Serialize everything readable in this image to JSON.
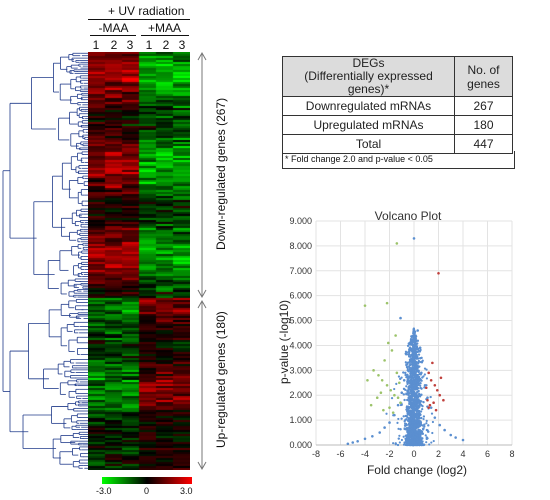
{
  "heatmap": {
    "condition_label": "+ UV radiation",
    "groups": [
      {
        "label": "-MAA",
        "columns": [
          "1",
          "2",
          "3"
        ]
      },
      {
        "label": "+MAA",
        "columns": [
          "1",
          "2",
          "3"
        ]
      }
    ],
    "clusters": [
      {
        "label": "Down-regulated genes (267)",
        "count": 267
      },
      {
        "label": "Up-regulated genes (180)",
        "count": 180
      }
    ],
    "colorbar": {
      "ticks": [
        "-3.0",
        "0",
        "3.0"
      ],
      "colors": {
        "low": "#00ff00",
        "mid": "#000000",
        "high": "#ff0000"
      }
    }
  },
  "deg_table": {
    "headers": [
      "DEGs\n(Differentially expressed genes)*",
      "No. of genes"
    ],
    "rows": [
      {
        "label": "Downregulated mRNAs",
        "value": "267"
      },
      {
        "label": "Upregulated mRNAs",
        "value": "180"
      },
      {
        "label": "Total",
        "value": "447"
      }
    ],
    "footnote": "* Fold change 2.0 and p-value < 0.05"
  },
  "chart_data": {
    "type": "scatter",
    "title": "Volcano Plot",
    "xlabel": "Fold change (log2)",
    "ylabel": "p-value (-log10)",
    "xlim": [
      -8,
      8
    ],
    "ylim": [
      0,
      9
    ],
    "xticks": [
      "-8",
      "-6",
      "-4",
      "-2",
      "0",
      "2",
      "4",
      "6",
      "8"
    ],
    "yticks": [
      "0.000",
      "1.000",
      "2.000",
      "3.000",
      "4.000",
      "5.000",
      "6.000",
      "7.000",
      "8.000",
      "9.000"
    ],
    "grid": true,
    "series": [
      {
        "color": "#5b8fd0",
        "points": [
          [
            0.3,
            4.6
          ],
          [
            0.1,
            4.2
          ],
          [
            0.5,
            3.9
          ],
          [
            -0.2,
            3.6
          ],
          [
            0.2,
            3.2
          ],
          [
            -0.5,
            3.0
          ],
          [
            0.6,
            2.9
          ],
          [
            -0.8,
            2.6
          ],
          [
            0.9,
            2.4
          ],
          [
            -1.0,
            2.1
          ],
          [
            1.1,
            1.9
          ],
          [
            -1.3,
            1.6
          ],
          [
            1.4,
            1.5
          ],
          [
            -1.6,
            1.2
          ],
          [
            1.7,
            1.1
          ],
          [
            -2.0,
            0.9
          ],
          [
            2.1,
            0.8
          ],
          [
            -2.4,
            0.7
          ],
          [
            2.5,
            0.6
          ],
          [
            -2.8,
            0.5
          ],
          [
            3.0,
            0.4
          ],
          [
            -3.4,
            0.35
          ],
          [
            3.4,
            0.3
          ],
          [
            -4.0,
            0.25
          ],
          [
            4.0,
            0.2
          ],
          [
            -4.6,
            0.15
          ],
          [
            -5.0,
            0.1
          ],
          [
            -5.4,
            0.05
          ],
          [
            0.0,
            8.3
          ],
          [
            -1.1,
            5.1
          ]
        ]
      },
      {
        "color": "#9cc36a",
        "points": [
          [
            -4.0,
            5.6
          ],
          [
            -3.3,
            3.0
          ],
          [
            -2.6,
            2.6
          ],
          [
            -2.2,
            2.4
          ],
          [
            -1.9,
            2.2
          ],
          [
            -1.6,
            2.0
          ],
          [
            -1.3,
            1.9
          ],
          [
            -2.9,
            2.8
          ],
          [
            -2.4,
            3.4
          ],
          [
            -1.8,
            3.8
          ],
          [
            -1.5,
            4.4
          ],
          [
            -2.2,
            5.7
          ],
          [
            -1.4,
            8.1
          ],
          [
            -1.2,
            2.5
          ],
          [
            -2.7,
            2.1
          ],
          [
            -3.0,
            1.9
          ],
          [
            -3.5,
            1.6
          ],
          [
            -1.1,
            1.7
          ],
          [
            -2.0,
            1.5
          ],
          [
            -1.7,
            1.3
          ],
          [
            -2.5,
            1.4
          ],
          [
            -1.4,
            2.9
          ],
          [
            -3.8,
            2.6
          ],
          [
            -2.1,
            4.1
          ]
        ]
      },
      {
        "color": "#c0403c",
        "points": [
          [
            1.2,
            2.9
          ],
          [
            1.4,
            2.6
          ],
          [
            1.7,
            2.4
          ],
          [
            1.9,
            2.2
          ],
          [
            2.1,
            2.0
          ],
          [
            1.1,
            1.8
          ],
          [
            1.6,
            1.7
          ],
          [
            1.3,
            1.6
          ],
          [
            2.4,
            1.8
          ],
          [
            1.8,
            1.4
          ],
          [
            2.0,
            6.9
          ],
          [
            1.5,
            3.3
          ],
          [
            2.2,
            2.7
          ],
          [
            1.0,
            2.3
          ],
          [
            1.2,
            1.5
          ]
        ]
      }
    ]
  }
}
